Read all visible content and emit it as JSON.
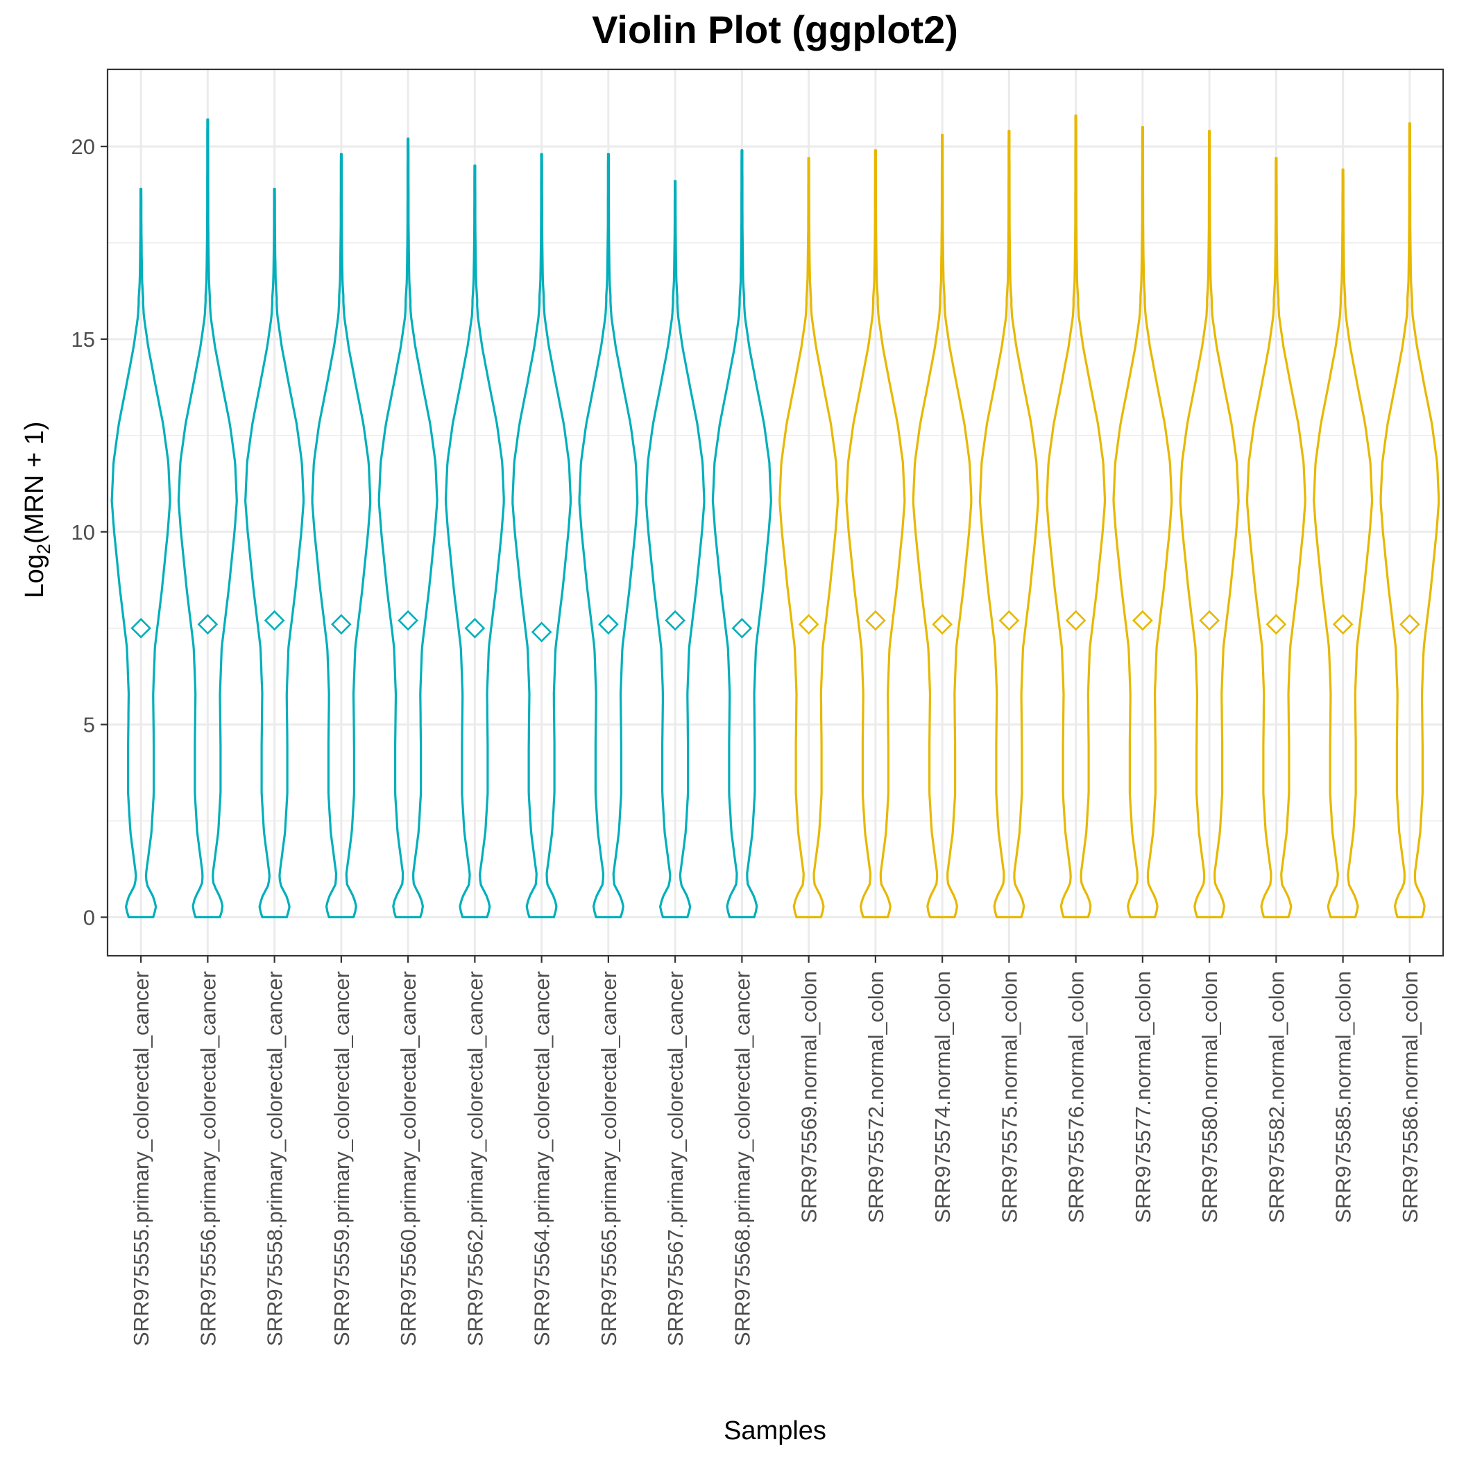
{
  "chart_data": {
    "type": "violin",
    "title": "Violin Plot (ggplot2)",
    "xlabel": "Samples",
    "ylabel_main": "Log",
    "ylabel_sub": "2",
    "ylabel_rest": "(MRN + 1)",
    "ylim": [
      -1,
      22
    ],
    "yticks": [
      0,
      5,
      10,
      15,
      20
    ],
    "grid": true,
    "colors": {
      "primary_colorectal_cancer": "#00AFBB",
      "normal_colon": "#E7B800"
    },
    "samples": [
      {
        "label": "SRR975555.primary_colorectal_cancer",
        "group": "primary_colorectal_cancer",
        "max": 18.9,
        "mean": 7.5
      },
      {
        "label": "SRR975556.primary_colorectal_cancer",
        "group": "primary_colorectal_cancer",
        "max": 20.7,
        "mean": 7.6
      },
      {
        "label": "SRR975558.primary_colorectal_cancer",
        "group": "primary_colorectal_cancer",
        "max": 18.9,
        "mean": 7.7
      },
      {
        "label": "SRR975559.primary_colorectal_cancer",
        "group": "primary_colorectal_cancer",
        "max": 19.8,
        "mean": 7.6
      },
      {
        "label": "SRR975560.primary_colorectal_cancer",
        "group": "primary_colorectal_cancer",
        "max": 20.2,
        "mean": 7.7
      },
      {
        "label": "SRR975562.primary_colorectal_cancer",
        "group": "primary_colorectal_cancer",
        "max": 19.5,
        "mean": 7.5
      },
      {
        "label": "SRR975564.primary_colorectal_cancer",
        "group": "primary_colorectal_cancer",
        "max": 19.8,
        "mean": 7.4
      },
      {
        "label": "SRR975565.primary_colorectal_cancer",
        "group": "primary_colorectal_cancer",
        "max": 19.8,
        "mean": 7.6
      },
      {
        "label": "SRR975567.primary_colorectal_cancer",
        "group": "primary_colorectal_cancer",
        "max": 19.1,
        "mean": 7.7
      },
      {
        "label": "SRR975568.primary_colorectal_cancer",
        "group": "primary_colorectal_cancer",
        "max": 19.9,
        "mean": 7.5
      },
      {
        "label": "SRR975569.normal_colon",
        "group": "normal_colon",
        "max": 19.7,
        "mean": 7.6
      },
      {
        "label": "SRR975572.normal_colon",
        "group": "normal_colon",
        "max": 19.9,
        "mean": 7.7
      },
      {
        "label": "SRR975574.normal_colon",
        "group": "normal_colon",
        "max": 20.3,
        "mean": 7.6
      },
      {
        "label": "SRR975575.normal_colon",
        "group": "normal_colon",
        "max": 20.4,
        "mean": 7.7
      },
      {
        "label": "SRR975576.normal_colon",
        "group": "normal_colon",
        "max": 20.8,
        "mean": 7.7
      },
      {
        "label": "SRR975577.normal_colon",
        "group": "normal_colon",
        "max": 20.5,
        "mean": 7.7
      },
      {
        "label": "SRR975580.normal_colon",
        "group": "normal_colon",
        "max": 20.4,
        "mean": 7.7
      },
      {
        "label": "SRR975582.normal_colon",
        "group": "normal_colon",
        "max": 19.7,
        "mean": 7.6
      },
      {
        "label": "SRR975585.normal_colon",
        "group": "normal_colon",
        "max": 19.4,
        "mean": 7.6
      },
      {
        "label": "SRR975586.normal_colon",
        "group": "normal_colon",
        "max": 20.6,
        "mean": 7.6
      }
    ]
  }
}
